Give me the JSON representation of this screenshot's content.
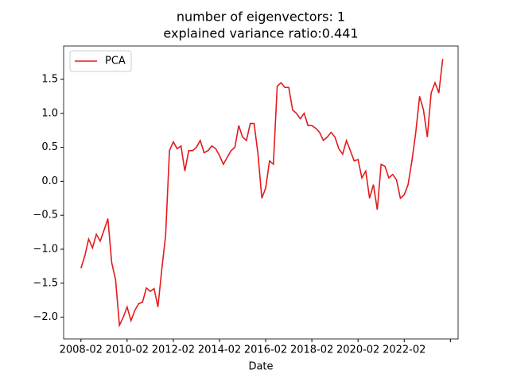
{
  "chart_data": {
    "type": "line",
    "title": [
      "number of eigenvectors: 1",
      "explained variance ratio:0.441"
    ],
    "xlabel": "Date",
    "x": [
      "2008-02",
      "2008-04",
      "2008-06",
      "2008-08",
      "2008-10",
      "2008-12",
      "2009-02",
      "2009-04",
      "2009-06",
      "2009-08",
      "2009-10",
      "2009-12",
      "2010-02",
      "2010-04",
      "2010-06",
      "2010-08",
      "2010-10",
      "2010-12",
      "2011-02",
      "2011-04",
      "2011-06",
      "2011-08",
      "2011-10",
      "2011-12",
      "2012-02",
      "2012-04",
      "2012-06",
      "2012-08",
      "2012-10",
      "2012-12",
      "2013-02",
      "2013-04",
      "2013-06",
      "2013-08",
      "2013-10",
      "2013-12",
      "2014-02",
      "2014-04",
      "2014-06",
      "2014-08",
      "2014-10",
      "2014-12",
      "2015-02",
      "2015-04",
      "2015-06",
      "2015-08",
      "2015-10",
      "2015-12",
      "2016-02",
      "2016-04",
      "2016-06",
      "2016-08",
      "2016-10",
      "2016-12",
      "2017-02",
      "2017-04",
      "2017-06",
      "2017-08",
      "2017-10",
      "2017-12",
      "2018-02",
      "2018-04",
      "2018-06",
      "2018-08",
      "2018-10",
      "2018-12",
      "2019-02",
      "2019-04",
      "2019-06",
      "2019-08",
      "2019-10",
      "2019-12",
      "2020-02",
      "2020-04",
      "2020-06",
      "2020-08",
      "2020-10",
      "2020-12",
      "2021-02",
      "2021-04",
      "2021-06",
      "2021-08",
      "2021-10",
      "2021-12",
      "2022-02",
      "2022-04",
      "2022-06",
      "2022-08",
      "2022-10",
      "2022-12",
      "2023-02",
      "2023-04",
      "2023-06",
      "2023-08",
      "2023-10"
    ],
    "series": [
      {
        "name": "PCA",
        "color": "#e41a1c",
        "values": [
          -1.28,
          -1.1,
          -0.85,
          -0.98,
          -0.78,
          -0.88,
          -0.72,
          -0.55,
          -1.2,
          -1.45,
          -2.12,
          -2.0,
          -1.85,
          -2.05,
          -1.9,
          -1.8,
          -1.78,
          -1.57,
          -1.62,
          -1.58,
          -1.85,
          -1.3,
          -0.8,
          0.45,
          0.58,
          0.48,
          0.52,
          0.15,
          0.45,
          0.45,
          0.5,
          0.6,
          0.42,
          0.45,
          0.52,
          0.48,
          0.38,
          0.25,
          0.35,
          0.45,
          0.5,
          0.82,
          0.65,
          0.6,
          0.85,
          0.85,
          0.4,
          -0.25,
          -0.1,
          0.3,
          0.25,
          1.4,
          1.45,
          1.38,
          1.38,
          1.05,
          1.0,
          0.92,
          1.0,
          0.82,
          0.82,
          0.78,
          0.72,
          0.6,
          0.65,
          0.72,
          0.65,
          0.48,
          0.4,
          0.6,
          0.45,
          0.3,
          0.32,
          0.05,
          0.15,
          -0.25,
          -0.05,
          -0.42,
          0.25,
          0.22,
          0.05,
          0.1,
          0.02,
          -0.25,
          -0.2,
          -0.05,
          0.3,
          0.72,
          1.25,
          1.05,
          0.65,
          1.3,
          1.45,
          1.3,
          1.8
        ]
      }
    ],
    "xlim": [
      "2007-05",
      "2024-06"
    ],
    "xticks": [
      "2008-02",
      "2010-02",
      "2012-02",
      "2014-02",
      "2016-02",
      "2018-02",
      "2020-02",
      "2022-02",
      {
        "value": "2024-02"
      }
    ],
    "ylim": [
      -2.32,
      1.99
    ],
    "yticks": [
      {
        "value": -2,
        "label": "−2.0"
      },
      {
        "value": -1.5,
        "label": "−1.5"
      },
      {
        "value": -1,
        "label": "−1.0"
      },
      {
        "value": -0.5,
        "label": "−0.5"
      },
      {
        "value": 0,
        "label": "0.0"
      },
      {
        "value": 0.5,
        "label": "0.5"
      },
      {
        "value": 1,
        "label": "1.0"
      },
      {
        "value": 1.5,
        "label": "1.5"
      }
    ],
    "legend": "upper left"
  }
}
